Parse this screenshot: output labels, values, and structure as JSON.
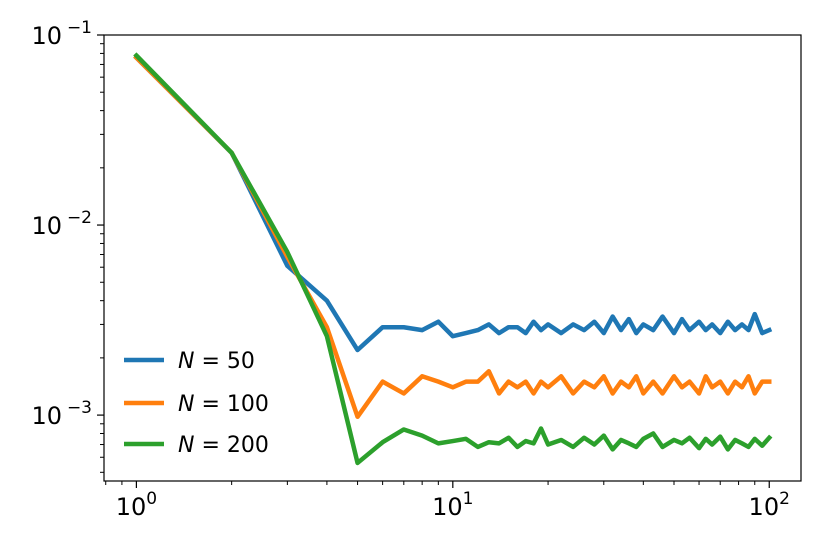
{
  "chart_data": {
    "type": "line",
    "xscale": "log",
    "yscale": "log",
    "xlim": [
      0.79,
      126
    ],
    "ylim": [
      0.00045,
      0.1
    ],
    "grid": false,
    "legend_position": "lower-left",
    "xlabel": "",
    "ylabel": "",
    "x_ticks": [
      {
        "value": 1,
        "base": "10",
        "exp": "0"
      },
      {
        "value": 10,
        "base": "10",
        "exp": "1"
      },
      {
        "value": 100,
        "base": "10",
        "exp": "2"
      }
    ],
    "y_ticks": [
      {
        "value": 0.001,
        "base": "10",
        "exp": "−3"
      },
      {
        "value": 0.01,
        "base": "10",
        "exp": "−2"
      },
      {
        "value": 0.1,
        "base": "10",
        "exp": "−1"
      }
    ],
    "series": [
      {
        "name": "N = 50",
        "name_main": "N",
        "name_rest": " = 50",
        "color": "#1f77b4",
        "x": [
          1,
          2,
          3,
          4,
          5,
          6,
          7,
          8,
          9,
          10,
          11,
          12,
          13,
          14,
          15,
          16,
          17,
          18,
          19,
          20,
          22,
          24,
          26,
          28,
          30,
          32,
          34,
          36,
          38,
          40,
          43,
          46,
          50,
          53,
          56,
          60,
          63,
          66,
          70,
          74,
          78,
          82,
          86,
          90,
          95,
          100
        ],
        "y": [
          0.076,
          0.024,
          0.0061,
          0.004,
          0.0022,
          0.0029,
          0.0029,
          0.0028,
          0.0031,
          0.0026,
          0.0027,
          0.0028,
          0.003,
          0.0027,
          0.0029,
          0.0029,
          0.0027,
          0.0031,
          0.0028,
          0.003,
          0.0027,
          0.003,
          0.0028,
          0.0031,
          0.0027,
          0.0033,
          0.0028,
          0.0032,
          0.0027,
          0.003,
          0.0028,
          0.0033,
          0.0027,
          0.0032,
          0.0028,
          0.0031,
          0.0028,
          0.003,
          0.0027,
          0.0031,
          0.0028,
          0.003,
          0.0028,
          0.0034,
          0.0027,
          0.0028
        ]
      },
      {
        "name": "N = 100",
        "name_main": "N",
        "name_rest": " = 100",
        "color": "#ff7f0e",
        "x": [
          1,
          2,
          3,
          4,
          5,
          6,
          7,
          8,
          9,
          10,
          11,
          12,
          13,
          14,
          15,
          16,
          17,
          18,
          19,
          20,
          22,
          24,
          26,
          28,
          30,
          32,
          34,
          36,
          38,
          40,
          43,
          46,
          50,
          53,
          56,
          60,
          63,
          66,
          70,
          74,
          78,
          82,
          86,
          90,
          95,
          100
        ],
        "y": [
          0.076,
          0.024,
          0.0068,
          0.0029,
          0.00098,
          0.0015,
          0.0013,
          0.0016,
          0.0015,
          0.0014,
          0.0015,
          0.0015,
          0.0017,
          0.0013,
          0.0015,
          0.0014,
          0.0015,
          0.0013,
          0.0015,
          0.0014,
          0.0016,
          0.0013,
          0.0015,
          0.0014,
          0.0016,
          0.0013,
          0.0015,
          0.0014,
          0.0016,
          0.0013,
          0.0015,
          0.0013,
          0.0016,
          0.0014,
          0.0015,
          0.0013,
          0.0016,
          0.0014,
          0.0015,
          0.0013,
          0.0015,
          0.0014,
          0.0016,
          0.0013,
          0.0015,
          0.0015
        ]
      },
      {
        "name": "N = 200",
        "name_main": "N",
        "name_rest": " = 200",
        "color": "#2ca02c",
        "x": [
          1,
          2,
          3,
          4,
          5,
          6,
          7,
          8,
          9,
          10,
          11,
          12,
          13,
          14,
          15,
          16,
          17,
          18,
          19,
          20,
          22,
          24,
          26,
          28,
          30,
          32,
          34,
          36,
          38,
          40,
          43,
          46,
          50,
          53,
          56,
          60,
          63,
          66,
          70,
          74,
          78,
          82,
          86,
          90,
          95,
          100
        ],
        "y": [
          0.078,
          0.024,
          0.0072,
          0.0026,
          0.00056,
          0.00072,
          0.00084,
          0.00078,
          0.00071,
          0.00073,
          0.00075,
          0.00068,
          0.00072,
          0.00071,
          0.00076,
          0.00068,
          0.00073,
          0.00071,
          0.00085,
          0.0007,
          0.00074,
          0.00068,
          0.00076,
          0.0007,
          0.00078,
          0.00066,
          0.00074,
          0.00071,
          0.00068,
          0.00075,
          0.0008,
          0.00068,
          0.00074,
          0.00071,
          0.00076,
          0.00067,
          0.00075,
          0.0007,
          0.00077,
          0.00066,
          0.00074,
          0.00071,
          0.00068,
          0.00075,
          0.00069,
          0.00076
        ]
      }
    ]
  }
}
